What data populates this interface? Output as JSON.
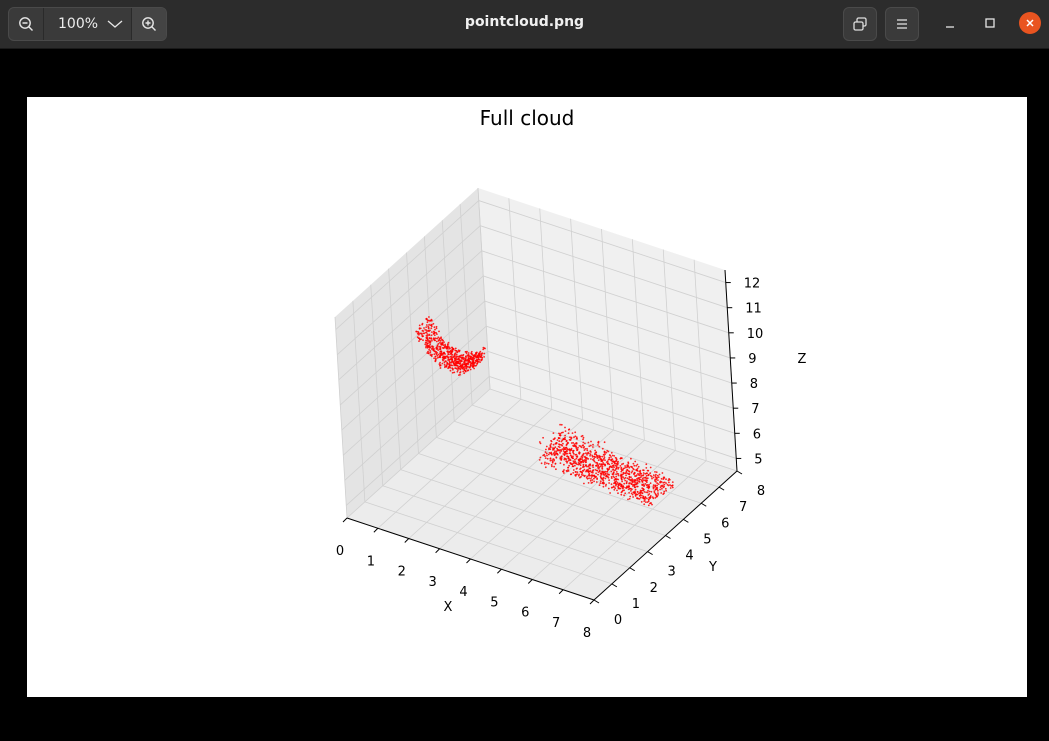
{
  "window": {
    "title": "pointcloud.png",
    "zoom_level": "100%"
  },
  "chart_data": {
    "type": "scatter",
    "projection": "3d",
    "title": "Full cloud",
    "xlabel": "X",
    "ylabel": "Y",
    "zlabel": "Z",
    "xlim": [
      0,
      8
    ],
    "ylim": [
      0,
      8
    ],
    "zlim": [
      4.5,
      12.5
    ],
    "x_ticks": [
      "0",
      "1",
      "2",
      "3",
      "4",
      "5",
      "6",
      "7",
      "8"
    ],
    "y_ticks": [
      "0",
      "1",
      "2",
      "3",
      "4",
      "5",
      "6",
      "7",
      "8"
    ],
    "z_ticks": [
      "5",
      "6",
      "7",
      "8",
      "9",
      "10",
      "11",
      "12"
    ],
    "grid": true,
    "marker_color": "#ff0000",
    "clusters": [
      {
        "x": [
          0.4,
          2.2
        ],
        "y": [
          3.6,
          4.4
        ],
        "z": [
          8.5,
          10.2
        ],
        "shape": "bowl"
      },
      {
        "x": [
          3.8,
          7.4
        ],
        "y": [
          4.2,
          5.6
        ],
        "z": [
          5.0,
          7.5
        ],
        "shape": "slab"
      }
    ]
  }
}
